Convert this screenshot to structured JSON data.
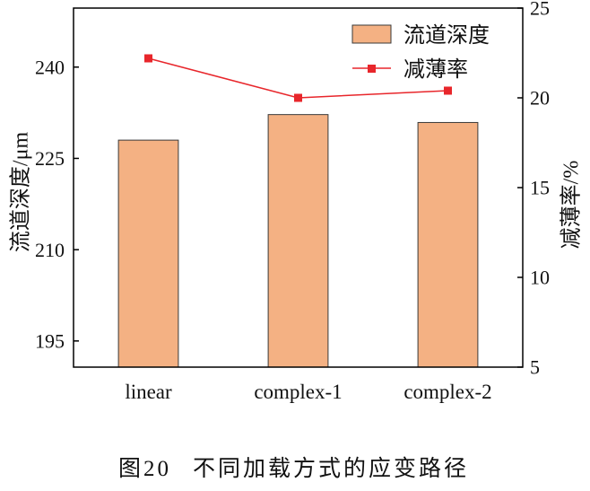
{
  "chart_data": {
    "type": "bar",
    "categories": [
      "linear",
      "complex-1",
      "complex-2"
    ],
    "series": [
      {
        "name": "流道深度",
        "type": "bar",
        "axis": "left",
        "values": [
          228.0,
          232.2,
          230.9
        ],
        "color": "#F4B183",
        "edgecolor": "#3A3A3A"
      },
      {
        "name": "减薄率",
        "type": "line",
        "axis": "right",
        "marker": "square",
        "values": [
          22.2,
          20.0,
          20.4
        ],
        "color": "#E8262B"
      }
    ],
    "ylabel": "流道深度/μm",
    "y2label": "减薄率/%",
    "ylim": [
      190.7,
      249.7
    ],
    "y2lim": [
      5,
      25
    ],
    "yticks": [
      195,
      210,
      225,
      240
    ],
    "y2ticks": [
      5,
      10,
      15,
      20,
      25
    ],
    "legend": "top-right",
    "grid": false
  },
  "caption": {
    "number": "图20",
    "text": "不同加载方式的应变路径"
  }
}
